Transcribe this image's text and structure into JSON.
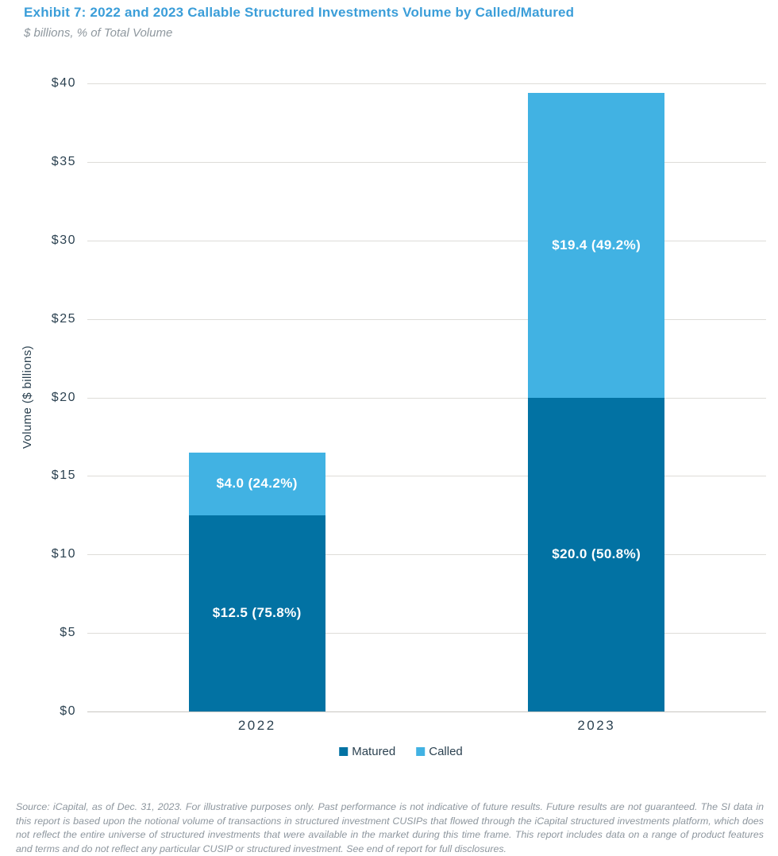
{
  "header": {
    "title": "Exhibit 7: 2022 and 2023 Callable Structured Investments Volume by Called/Matured",
    "subtitle": "$ billions, % of Total Volume"
  },
  "chart_data": {
    "type": "bar",
    "stacked": true,
    "categories": [
      "2022",
      "2023"
    ],
    "series": [
      {
        "name": "Matured",
        "color": "#0272a3",
        "values": [
          12.5,
          20.0
        ],
        "labels": [
          "$12.5 (75.8%)",
          "$20.0 (50.8%)"
        ],
        "percents": [
          75.8,
          50.8
        ]
      },
      {
        "name": "Called",
        "color": "#41b2e3",
        "values": [
          4.0,
          19.4
        ],
        "labels": [
          "$4.0 (24.2%)",
          "$19.4 (49.2%)"
        ],
        "percents": [
          24.2,
          49.2
        ]
      }
    ],
    "totals": [
      16.5,
      39.4
    ],
    "title": "Exhibit 7: 2022 and 2023 Callable Structured Investments Volume by Called/Matured",
    "xlabel": "",
    "ylabel": "Volume ($ billions)",
    "ylim": [
      0,
      40
    ],
    "ytick_step": 5,
    "ytick_labels": [
      "$0",
      "$5",
      "$10",
      "$15",
      "$20",
      "$25",
      "$30",
      "$35",
      "$40"
    ],
    "grid": true,
    "legend_position": "bottom"
  },
  "footer": {
    "source_text": "Source: iCapital, as of Dec. 31, 2023. For illustrative purposes only. Past performance is not indicative of future results. Future results are not guaranteed. The SI data in this report is based upon the notional volume of transactions in structured investment CUSIPs that flowed through the iCapital structured investments platform, which does not reflect the entire universe of structured investments that were available in the market during this time frame. This report includes data on a range of product features and terms and do not reflect any particular CUSIP or structured investment. See end of report for full disclosures."
  }
}
